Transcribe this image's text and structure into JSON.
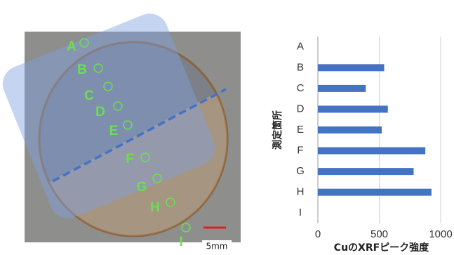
{
  "photo": {
    "points": [
      "A",
      "B",
      "C",
      "D",
      "E",
      "F",
      "G",
      "H",
      "I"
    ],
    "scale_bar_label": "5mm"
  },
  "chart_data": {
    "type": "bar",
    "orientation": "horizontal",
    "categories": [
      "A",
      "B",
      "C",
      "D",
      "E",
      "F",
      "G",
      "H",
      "I"
    ],
    "values": [
      0,
      540,
      390,
      570,
      520,
      875,
      780,
      925,
      0
    ],
    "color": "#4472c4",
    "xlim": [
      0,
      1000
    ],
    "xticks": [
      0,
      500,
      1000
    ],
    "grid": true,
    "xlabel": "CuのXRFピーク強度",
    "ylabel": "測定箇所"
  }
}
